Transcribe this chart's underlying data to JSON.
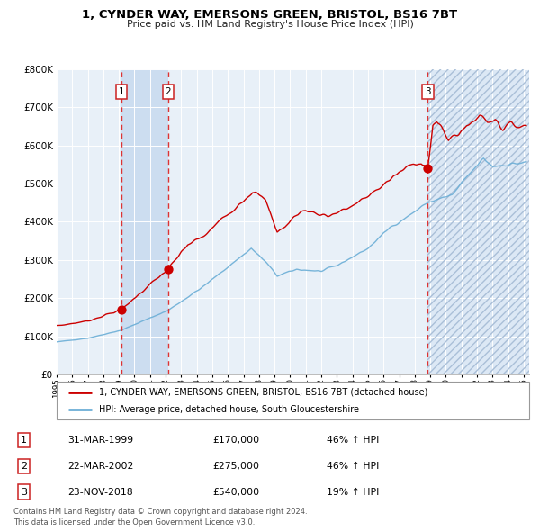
{
  "title": "1, CYNDER WAY, EMERSONS GREEN, BRISTOL, BS16 7BT",
  "subtitle": "Price paid vs. HM Land Registry's House Price Index (HPI)",
  "sales": [
    {
      "label": "1",
      "date": "1999-03-31",
      "price": 170000
    },
    {
      "label": "2",
      "date": "2002-03-22",
      "price": 275000
    },
    {
      "label": "3",
      "date": "2018-11-23",
      "price": 540000
    }
  ],
  "sale_table": [
    {
      "num": "1",
      "date": "31-MAR-1999",
      "price": "£170,000",
      "hpi": "46% ↑ HPI"
    },
    {
      "num": "2",
      "date": "22-MAR-2002",
      "price": "£275,000",
      "hpi": "46% ↑ HPI"
    },
    {
      "num": "3",
      "date": "23-NOV-2018",
      "price": "£540,000",
      "hpi": "19% ↑ HPI"
    }
  ],
  "legend_line1": "1, CYNDER WAY, EMERSONS GREEN, BRISTOL, BS16 7BT (detached house)",
  "legend_line2": "HPI: Average price, detached house, South Gloucestershire",
  "footer": "Contains HM Land Registry data © Crown copyright and database right 2024.\nThis data is licensed under the Open Government Licence v3.0.",
  "ylim": [
    0,
    800000
  ],
  "yticks": [
    0,
    100000,
    200000,
    300000,
    400000,
    500000,
    600000,
    700000,
    800000
  ],
  "red_color": "#cc0000",
  "blue_color": "#6baed6",
  "chart_bg": "#e8f0f8",
  "shade_color": "#d0dff0"
}
